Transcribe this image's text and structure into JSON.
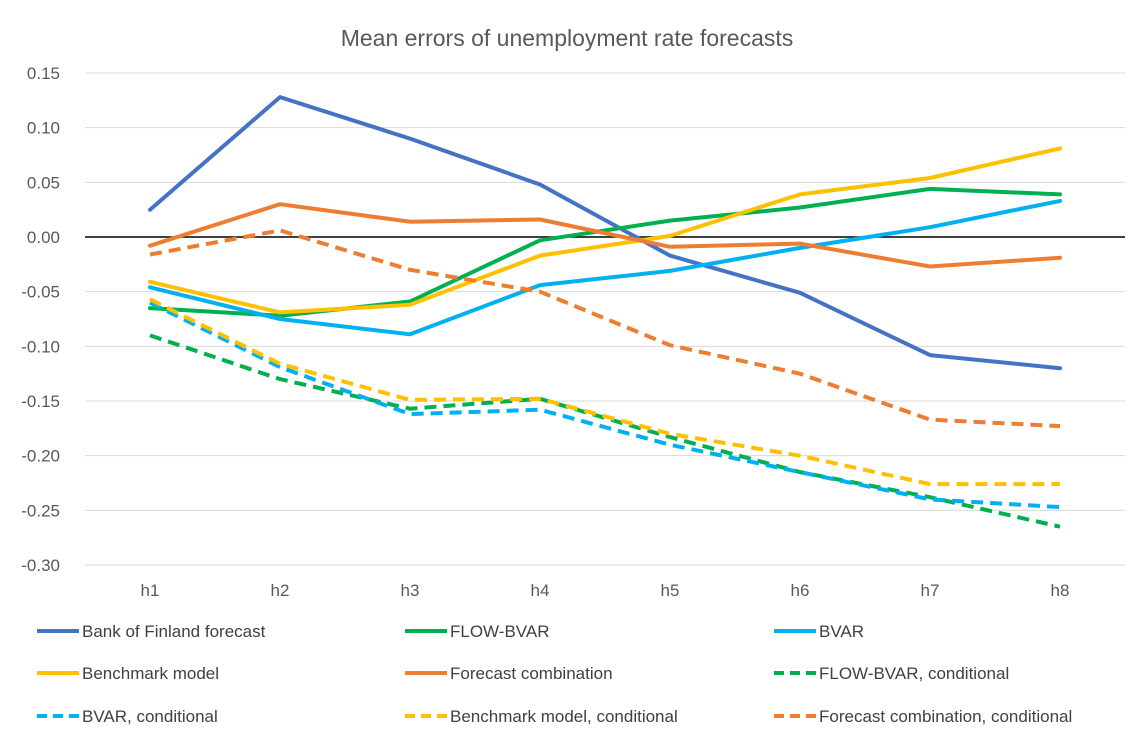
{
  "chart_data": {
    "type": "line",
    "title": "Mean errors of unemployment rate forecasts",
    "xlabel": "",
    "ylabel": "",
    "categories": [
      "h1",
      "h2",
      "h3",
      "h4",
      "h5",
      "h6",
      "h7",
      "h8"
    ],
    "ylim": [
      -0.3,
      0.15
    ],
    "yticks": [
      "0.15",
      "0.10",
      "0.05",
      "0.00",
      "-0.05",
      "-0.10",
      "-0.15",
      "-0.20",
      "-0.25",
      "-0.30"
    ],
    "ytick_values": [
      0.15,
      0.1,
      0.05,
      0.0,
      -0.05,
      -0.1,
      -0.15,
      -0.2,
      -0.25,
      -0.3
    ],
    "grid": true,
    "legend_position": "bottom",
    "series": [
      {
        "name": "Bank of Finland forecast",
        "color": "#4472c4",
        "dashed": false,
        "values": [
          0.025,
          0.128,
          0.09,
          0.048,
          -0.017,
          -0.051,
          -0.108,
          -0.12
        ]
      },
      {
        "name": "FLOW-BVAR",
        "color": "#00b050",
        "dashed": false,
        "values": [
          -0.065,
          -0.072,
          -0.059,
          -0.003,
          0.015,
          0.027,
          0.044,
          0.039
        ]
      },
      {
        "name": "BVAR",
        "color": "#00b0f0",
        "dashed": false,
        "values": [
          -0.046,
          -0.075,
          -0.089,
          -0.044,
          -0.031,
          -0.01,
          0.009,
          0.033
        ]
      },
      {
        "name": "Benchmark model",
        "color": "#ffc000",
        "dashed": false,
        "values": [
          -0.041,
          -0.069,
          -0.062,
          -0.017,
          0.001,
          0.039,
          0.054,
          0.081
        ]
      },
      {
        "name": "Forecast combination",
        "color": "#ed7d31",
        "dashed": false,
        "values": [
          -0.008,
          0.03,
          0.014,
          0.016,
          -0.009,
          -0.006,
          -0.027,
          -0.019
        ]
      },
      {
        "name": "FLOW-BVAR, conditional",
        "color": "#00b050",
        "dashed": true,
        "values": [
          -0.09,
          -0.13,
          -0.157,
          -0.148,
          -0.183,
          -0.215,
          -0.238,
          -0.265
        ]
      },
      {
        "name": "BVAR, conditional",
        "color": "#00b0f0",
        "dashed": true,
        "values": [
          -0.06,
          -0.119,
          -0.162,
          -0.158,
          -0.19,
          -0.215,
          -0.24,
          -0.247
        ]
      },
      {
        "name": "Benchmark model, conditional",
        "color": "#ffc000",
        "dashed": true,
        "values": [
          -0.057,
          -0.116,
          -0.149,
          -0.148,
          -0.18,
          -0.2,
          -0.226,
          -0.226
        ]
      },
      {
        "name": "Forecast combination, conditional",
        "color": "#ed7d31",
        "dashed": true,
        "values": [
          -0.016,
          0.006,
          -0.03,
          -0.05,
          -0.099,
          -0.125,
          -0.167,
          -0.173
        ]
      }
    ]
  }
}
